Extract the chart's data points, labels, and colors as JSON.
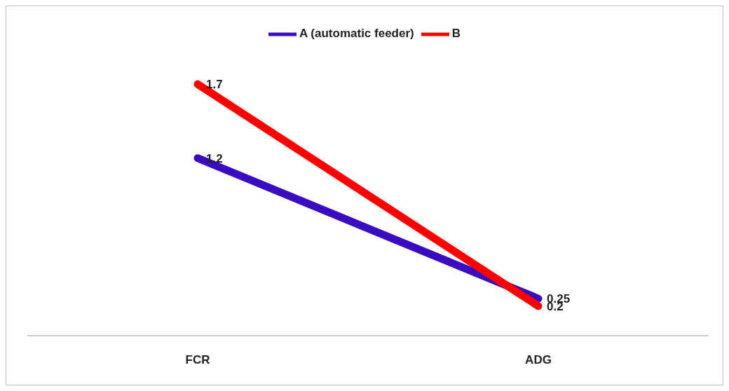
{
  "chart_data": {
    "type": "line",
    "categories": [
      "FCR",
      "ADG"
    ],
    "series": [
      {
        "name": "A (automatic feeder)",
        "color": "#3a0cc0",
        "values": [
          1.2,
          0.25
        ]
      },
      {
        "name": "B",
        "color": "#ff0000",
        "values": [
          1.7,
          0.2
        ]
      }
    ],
    "data_labels": true,
    "legend": "top",
    "grid": false,
    "marker": "none",
    "line_style": "solid"
  }
}
